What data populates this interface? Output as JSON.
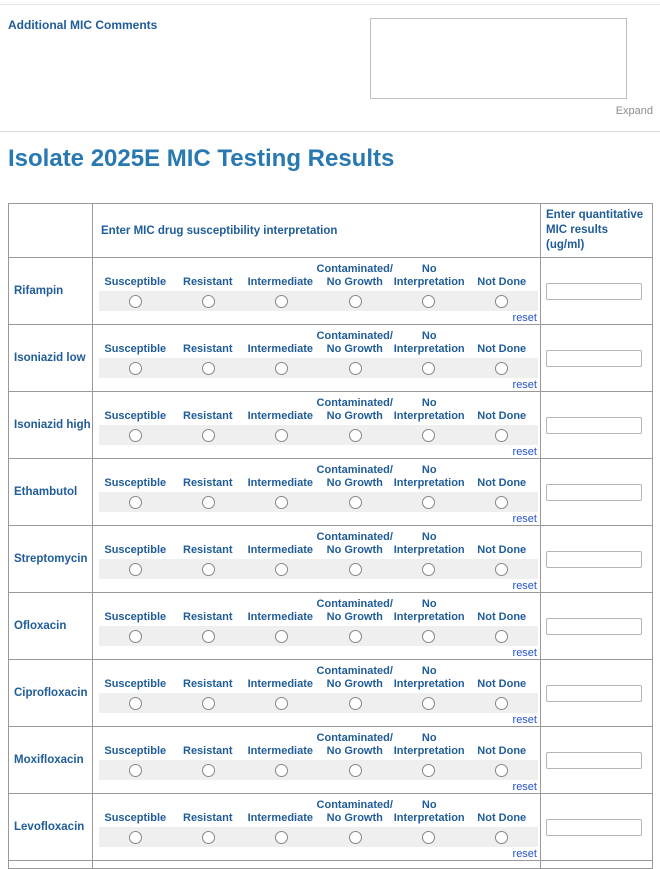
{
  "comments": {
    "label": "Additional MIC Comments",
    "value": "",
    "expand_label": "Expand"
  },
  "page": {
    "title": "Isolate 2025E MIC Testing Results"
  },
  "table": {
    "interpretation_header": "Enter MIC drug susceptibility interpretation",
    "quantitative_header": "Enter quantitative MIC results (ug/ml)",
    "reset_label": "reset",
    "options": [
      {
        "line1": "",
        "line2": "Susceptible"
      },
      {
        "line1": "",
        "line2": "Resistant"
      },
      {
        "line1": "",
        "line2": "Intermediate"
      },
      {
        "line1": "Contaminated/",
        "line2": "No Growth"
      },
      {
        "line1": "No",
        "line2": "Interpretation"
      },
      {
        "line1": "",
        "line2": "Not Done"
      }
    ],
    "drugs": [
      {
        "name": "Rifampin",
        "mic_value": ""
      },
      {
        "name": "Isoniazid low",
        "mic_value": ""
      },
      {
        "name": "Isoniazid high",
        "mic_value": ""
      },
      {
        "name": "Ethambutol",
        "mic_value": ""
      },
      {
        "name": "Streptomycin",
        "mic_value": ""
      },
      {
        "name": "Ofloxacin",
        "mic_value": ""
      },
      {
        "name": "Ciprofloxacin",
        "mic_value": ""
      },
      {
        "name": "Moxifloxacin",
        "mic_value": ""
      },
      {
        "name": "Levofloxacin",
        "mic_value": ""
      }
    ]
  },
  "colors": {
    "label_blue": "#1f5c99",
    "title_blue": "#2878b2",
    "link_blue": "#2453cc",
    "strip_gray": "#efefef",
    "border_gray": "#999999"
  }
}
